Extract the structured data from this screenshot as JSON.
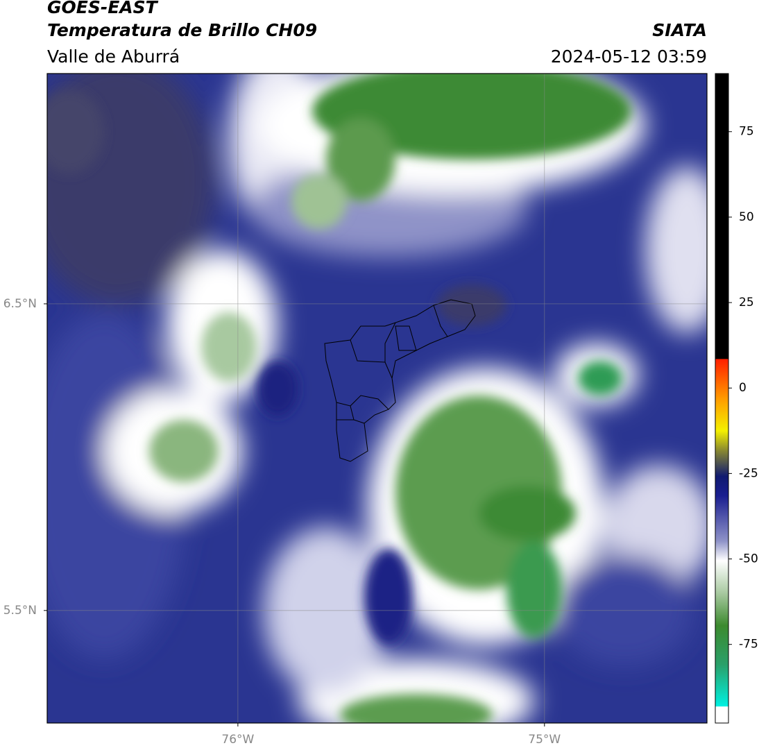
{
  "header": {
    "title": "GOES-EAST",
    "subtitle": "Temperatura de Brillo CH09",
    "region": "Valle de Aburrá",
    "source": "SIATA",
    "timestamp": "2024-05-12 03:59"
  },
  "map": {
    "lon_range": [
      -76.622,
      -74.47
    ],
    "lat_range": [
      5.133,
      7.251
    ],
    "lon_ticks": [
      {
        "value": -76,
        "label": "76°W"
      },
      {
        "value": -75,
        "label": "75°W"
      }
    ],
    "lat_ticks": [
      {
        "value": 6.5,
        "label": "6.5°N"
      },
      {
        "value": 5.5,
        "label": "5.5°N"
      }
    ],
    "grid": true
  },
  "colorbar": {
    "lim": [
      -98,
      92
    ],
    "ticks": [
      75,
      50,
      25,
      0,
      -25,
      -50,
      -75
    ]
  }
}
